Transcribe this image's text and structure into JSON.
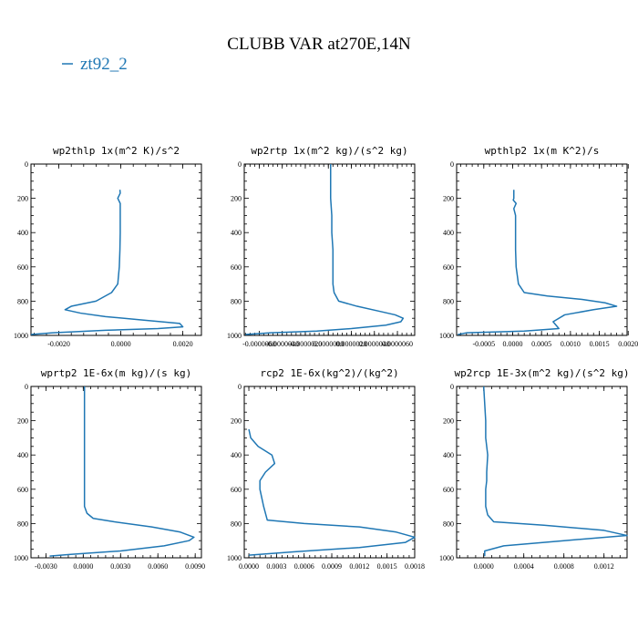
{
  "figure": {
    "title": "CLUBB VAR at270E,14N",
    "legend_label": "zt92_2",
    "series_color": "#1f77b4"
  },
  "chart_data": [
    {
      "type": "line",
      "title": "wp2thlp  1x(m^2 K)/s^2",
      "xlim": [
        -0.0029,
        0.0026
      ],
      "ylim": [
        1000,
        0
      ],
      "xticks": [
        -0.002,
        0.0,
        0.002
      ],
      "xtick_labels": [
        "-0.0020",
        "0.0000",
        "0.0020"
      ],
      "yticks": [
        0,
        200,
        400,
        600,
        800,
        1000
      ],
      "ytick_labels": [
        "0",
        "200",
        "400",
        "600",
        "800",
        "1000"
      ],
      "series": [
        {
          "x": [
            -3e-05,
            -2e-05,
            -0.0001,
            -2e-05,
            -2e-05,
            -2e-05,
            -3e-05,
            -5e-05,
            -0.0001,
            -0.0003,
            -0.0008,
            -0.0016,
            -0.0018,
            -0.0013,
            -0.0005,
            0.0007,
            0.0019,
            0.002,
            0.0012,
            -0.0005,
            -0.0022,
            -0.0029
          ],
          "y": [
            150,
            170,
            200,
            230,
            300,
            400,
            500,
            600,
            700,
            750,
            800,
            830,
            850,
            870,
            890,
            910,
            930,
            950,
            960,
            970,
            985,
            995
          ]
        }
      ]
    },
    {
      "type": "line",
      "title": "wp2rtp  1x(m^2 kg)/(s^2 kg)",
      "xlim": [
        -7.3e-06,
        7.5e-06
      ],
      "ylim": [
        1000,
        0
      ],
      "xticks": [
        -6e-06,
        -4e-06,
        -2e-06,
        0.0,
        2e-06,
        4e-06,
        6e-06
      ],
      "xtick_labels": [
        "-0.0000060",
        "-0.0000040",
        "-0.0000020",
        "0.0000000",
        "0.0000020",
        "0.0000040",
        "0.0000060"
      ],
      "yticks": [
        0,
        200,
        400,
        600,
        800,
        1000
      ],
      "ytick_labels": [
        "0",
        "200",
        "400",
        "600",
        "800",
        "1000"
      ],
      "series": [
        {
          "x": [
            2e-07,
            2e-07,
            3e-07,
            3e-07,
            4e-07,
            4e-07,
            4e-07,
            5e-07,
            9e-07,
            2.5e-06,
            4.5e-06,
            5.8e-06,
            6.5e-06,
            6.3e-06,
            5e-06,
            2e-06,
            -1e-06,
            -5e-06,
            -7.2e-06
          ],
          "y": [
            0,
            200,
            300,
            400,
            500,
            600,
            700,
            750,
            800,
            830,
            860,
            880,
            900,
            920,
            940,
            960,
            975,
            985,
            995
          ]
        }
      ]
    },
    {
      "type": "line",
      "title": "wpthlp2  1x(m K^2)/s",
      "xlim": [
        -0.00097,
        0.00198
      ],
      "ylim": [
        1000,
        0
      ],
      "xticks": [
        -0.0005,
        0.0,
        0.0005,
        0.001,
        0.0015,
        0.002
      ],
      "xtick_labels": [
        "-0.0005",
        "0.0000",
        "0.0005",
        "0.0010",
        "0.0015",
        "0.0020"
      ],
      "yticks": [
        0,
        200,
        400,
        600,
        800,
        1000
      ],
      "ytick_labels": [
        "0",
        "200",
        "400",
        "600",
        "800",
        "1000"
      ],
      "series": [
        {
          "x": [
            2e-05,
            2e-05,
            1e-05,
            6e-05,
            2e-05,
            5e-05,
            5e-05,
            5e-05,
            6e-05,
            0.0001,
            0.0002,
            0.0006,
            0.0012,
            0.0016,
            0.0018,
            0.0014,
            0.0009,
            0.0007,
            0.00075,
            0.0008,
            0.0002,
            -0.0008,
            -0.00095
          ],
          "y": [
            150,
            200,
            210,
            230,
            260,
            300,
            400,
            500,
            600,
            700,
            750,
            770,
            790,
            810,
            830,
            850,
            880,
            920,
            940,
            960,
            975,
            985,
            995
          ]
        }
      ]
    },
    {
      "type": "line",
      "title": "wprtp2  1E-6x(m kg)/(s kg)",
      "xlim": [
        -0.0042,
        0.0095
      ],
      "ylim": [
        1000,
        0
      ],
      "xticks": [
        -0.003,
        0.0,
        0.003,
        0.006,
        0.009
      ],
      "xtick_labels": [
        "-0.0030",
        "0.0000",
        "0.0030",
        "0.0060",
        "0.0090"
      ],
      "yticks": [
        0,
        200,
        400,
        600,
        800,
        1000
      ],
      "ytick_labels": [
        "0",
        "200",
        "400",
        "600",
        "800",
        "1000"
      ],
      "series": [
        {
          "x": [
            0.0001,
            0.0001,
            0.0001,
            0.0001,
            0.0001,
            0.0001,
            0.0003,
            0.0008,
            0.0025,
            0.0055,
            0.0078,
            0.0089,
            0.0085,
            0.0065,
            0.003,
            -0.001,
            -0.0027
          ],
          "y": [
            0,
            200,
            400,
            500,
            600,
            700,
            740,
            770,
            790,
            820,
            850,
            880,
            900,
            930,
            960,
            980,
            990
          ]
        }
      ]
    },
    {
      "type": "line",
      "title": "rcp2  1E-6x(kg^2)/(kg^2)",
      "xlim": [
        -5e-05,
        0.0018
      ],
      "ylim": [
        1000,
        0
      ],
      "xticks": [
        0.0,
        0.0003,
        0.0006,
        0.0009,
        0.0012,
        0.0015,
        0.0018
      ],
      "xtick_labels": [
        "0.0000",
        "0.0003",
        "0.0006",
        "0.0009",
        "0.0012",
        "0.0015",
        "0.0018"
      ],
      "yticks": [
        0,
        200,
        400,
        600,
        800,
        1000
      ],
      "ytick_labels": [
        "0",
        "200",
        "400",
        "600",
        "800",
        "1000"
      ],
      "series": [
        {
          "x": [
            0.0,
            2e-05,
            0.0001,
            0.00025,
            0.00028,
            0.00018,
            0.00012,
            0.00012,
            0.00014,
            0.00016,
            0.0002,
            0.0006,
            0.0012,
            0.0016,
            0.0018,
            0.0017,
            0.0012,
            0.0005,
            0.0
          ],
          "y": [
            250,
            300,
            350,
            400,
            450,
            500,
            550,
            600,
            650,
            700,
            780,
            800,
            820,
            850,
            880,
            910,
            940,
            965,
            985
          ]
        }
      ]
    },
    {
      "type": "line",
      "title": "wp2rcp  1E-3x(m^2 kg)/(s^2 kg)",
      "xlim": [
        -0.00027,
        0.00143
      ],
      "ylim": [
        1000,
        0
      ],
      "xticks": [
        0.0,
        0.0004,
        0.0008,
        0.0012
      ],
      "xtick_labels": [
        "0.0000",
        "0.0004",
        "0.0008",
        "0.0012"
      ],
      "yticks": [
        0,
        200,
        400,
        600,
        800,
        1000
      ],
      "ytick_labels": [
        "0",
        "200",
        "400",
        "600",
        "800",
        "1000"
      ],
      "series": [
        {
          "x": [
            0.0,
            2e-05,
            2e-05,
            4e-05,
            3e-05,
            3e-05,
            2e-05,
            2e-05,
            4e-05,
            0.0001,
            0.0006,
            0.0012,
            0.00143,
            0.0008,
            0.0002,
            1e-05,
            1e-05
          ],
          "y": [
            0,
            200,
            300,
            400,
            500,
            550,
            600,
            700,
            750,
            790,
            810,
            840,
            870,
            900,
            930,
            960,
            990
          ]
        }
      ]
    }
  ]
}
